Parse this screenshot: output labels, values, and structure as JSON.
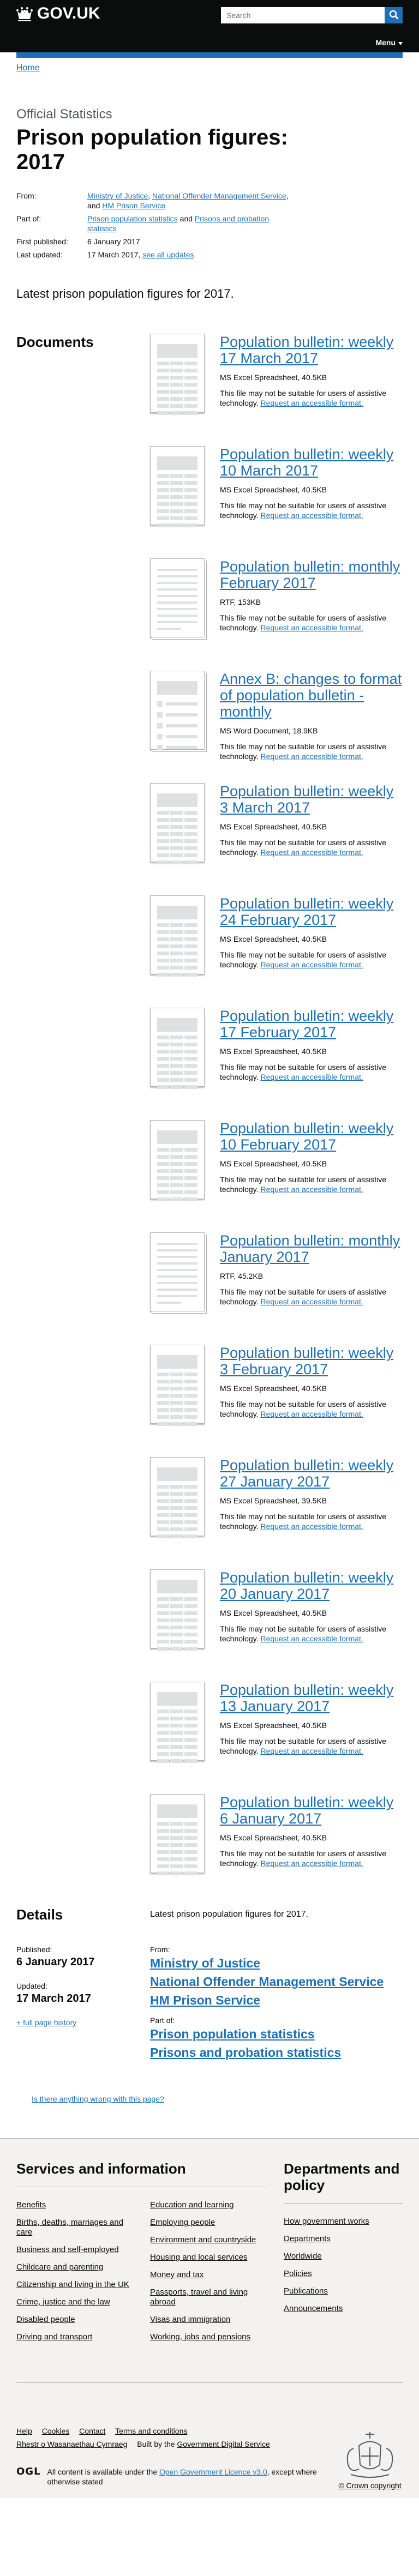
{
  "header": {
    "logo_text": "GOV.UK",
    "search_placeholder": "Search",
    "menu_label": "Menu"
  },
  "breadcrumb": {
    "home": "Home"
  },
  "page": {
    "type_label": "Official Statistics",
    "title": "Prison population figures: 2017",
    "meta": {
      "from_label": "From:",
      "from_links": [
        "Ministry of Justice",
        "National Offender Management Service",
        "HM Prison Service"
      ],
      "part_of_label": "Part of:",
      "part_of_links": [
        "Prison population statistics",
        "Prisons and probation statistics"
      ],
      "first_published_label": "First published:",
      "first_published": "6 January 2017",
      "last_updated_label": "Last updated:",
      "last_updated": "17 March 2017",
      "see_updates": "see all updates"
    },
    "intro": "Latest prison population figures for 2017."
  },
  "documents": {
    "heading": "Documents",
    "note_text": "This file may not be suitable for users of assistive technology.",
    "accessible_link": "Request an accessible format.",
    "items": [
      {
        "title": "Population bulletin: weekly 17 March 2017",
        "meta": "MS Excel Spreadsheet, 40.5KB",
        "kind": "sheet"
      },
      {
        "title": "Population bulletin: weekly 10 March 2017",
        "meta": "MS Excel Spreadsheet, 40.5KB",
        "kind": "sheet"
      },
      {
        "title": "Population bulletin: monthly February 2017",
        "meta": "RTF, 153KB",
        "kind": "rtf"
      },
      {
        "title": "Annex B: changes to format of population bulletin - monthly",
        "meta": "MS Word Document, 18.9KB",
        "kind": "word"
      },
      {
        "title": "Population bulletin: weekly 3 March 2017",
        "meta": "MS Excel Spreadsheet, 40.5KB",
        "kind": "sheet"
      },
      {
        "title": "Population bulletin: weekly 24 February 2017",
        "meta": "MS Excel Spreadsheet, 40.5KB",
        "kind": "sheet"
      },
      {
        "title": "Population bulletin: weekly 17 February 2017",
        "meta": "MS Excel Spreadsheet, 40.5KB",
        "kind": "sheet"
      },
      {
        "title": "Population bulletin: weekly 10 February 2017",
        "meta": "MS Excel Spreadsheet, 40.5KB",
        "kind": "sheet"
      },
      {
        "title": "Population bulletin: monthly January 2017",
        "meta": "RTF, 45.2KB",
        "kind": "rtf"
      },
      {
        "title": "Population bulletin: weekly 3 February 2017",
        "meta": "MS Excel Spreadsheet, 40.5KB",
        "kind": "sheet"
      },
      {
        "title": "Population bulletin: weekly 27 January 2017",
        "meta": "MS Excel Spreadsheet, 39.5KB",
        "kind": "sheet"
      },
      {
        "title": "Population bulletin: weekly 20 January 2017",
        "meta": "MS Excel Spreadsheet, 40.5KB",
        "kind": "sheet"
      },
      {
        "title": "Population bulletin: weekly 13 January 2017",
        "meta": "MS Excel Spreadsheet, 40.5KB",
        "kind": "sheet"
      },
      {
        "title": "Population bulletin: weekly 6 January 2017",
        "meta": "MS Excel Spreadsheet, 40.5KB",
        "kind": "sheet"
      }
    ]
  },
  "details": {
    "heading": "Details",
    "text": "Latest prison population figures for 2017.",
    "published_label": "Published:",
    "published": "6 January 2017",
    "updated_label": "Updated:",
    "updated": "17 March 2017",
    "history_link": "+ full page history",
    "from_label": "From:",
    "from_links": [
      "Ministry of Justice",
      "National Offender Management Service",
      "HM Prison Service"
    ],
    "part_of_label": "Part of:",
    "part_of_links": [
      "Prison population statistics",
      "Prisons and probation statistics"
    ]
  },
  "report_link": "Is there anything wrong with this page?",
  "footer": {
    "services_heading": "Services and information",
    "services_col1": [
      "Benefits",
      "Births, deaths, marriages and care",
      "Business and self-employed",
      "Childcare and parenting",
      "Citizenship and living in the UK",
      "Crime, justice and the law",
      "Disabled people",
      "Driving and transport"
    ],
    "services_col2": [
      "Education and learning",
      "Employing people",
      "Environment and countryside",
      "Housing and local services",
      "Money and tax",
      "Passports, travel and living abroad",
      "Visas and immigration",
      "Working, jobs and pensions"
    ],
    "departments_heading": "Departments and policy",
    "departments": [
      "How government works",
      "Departments",
      "Worldwide",
      "Policies",
      "Publications",
      "Announcements"
    ],
    "meta_links": [
      "Help",
      "Cookies",
      "Contact",
      "Terms and conditions"
    ],
    "welsh": "Rhestr o Wasanaethau Cymraeg",
    "built_prefix": "Built by the",
    "built_link": "Government Digital Service",
    "ogl_label": "OGL",
    "licence_prefix": "All content is available under the",
    "licence_link": "Open Government Licence v3.0",
    "licence_suffix": ", except where otherwise stated",
    "copyright": "© Crown copyright"
  }
}
